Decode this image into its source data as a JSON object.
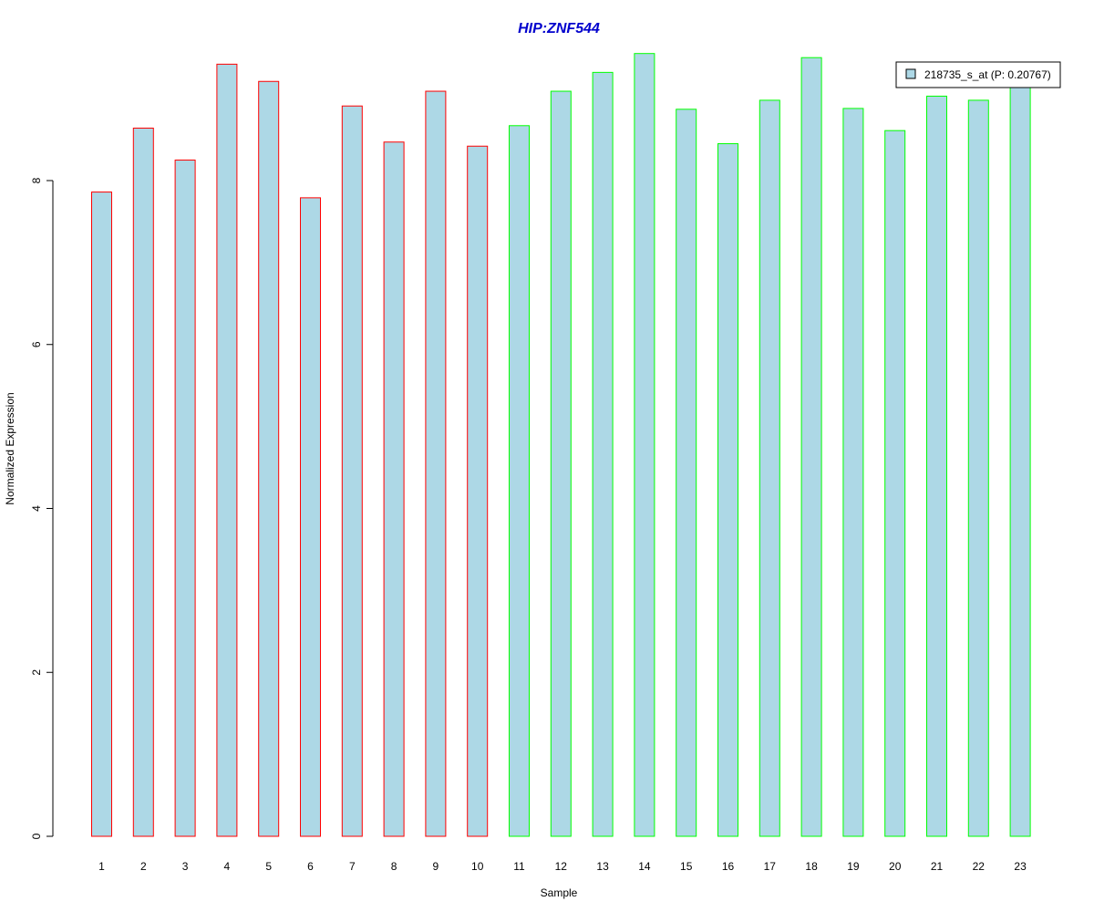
{
  "colors": {
    "bar_fill": "#add8e6",
    "group1_border": "#ff0000",
    "group2_border": "#00ff00",
    "title": "#0000cd",
    "axis": "#000000"
  },
  "chart_data": {
    "type": "bar",
    "title": "HIP:ZNF544",
    "xlabel": "Sample",
    "ylabel": "Normalized Expression",
    "ylim": [
      0,
      9.55
    ],
    "yticks": [
      0,
      2,
      4,
      6,
      8
    ],
    "grid": false,
    "legend_position": "top-right",
    "categories": [
      "1",
      "2",
      "3",
      "4",
      "5",
      "6",
      "7",
      "8",
      "9",
      "10",
      "11",
      "12",
      "13",
      "14",
      "15",
      "16",
      "17",
      "18",
      "19",
      "20",
      "21",
      "22",
      "23"
    ],
    "series": [
      {
        "name": "218735_s_at (P: 0.20767)",
        "values": [
          7.86,
          8.64,
          8.25,
          9.42,
          9.21,
          7.79,
          8.91,
          8.47,
          9.09,
          8.42,
          8.67,
          9.09,
          9.32,
          9.55,
          8.87,
          8.45,
          8.98,
          9.5,
          8.88,
          8.61,
          9.03,
          8.98,
          9.22
        ],
        "border_groups": [
          "g1",
          "g1",
          "g1",
          "g1",
          "g1",
          "g1",
          "g1",
          "g1",
          "g1",
          "g1",
          "g2",
          "g2",
          "g2",
          "g2",
          "g2",
          "g2",
          "g2",
          "g2",
          "g2",
          "g2",
          "g2",
          "g2",
          "g2"
        ]
      }
    ]
  }
}
